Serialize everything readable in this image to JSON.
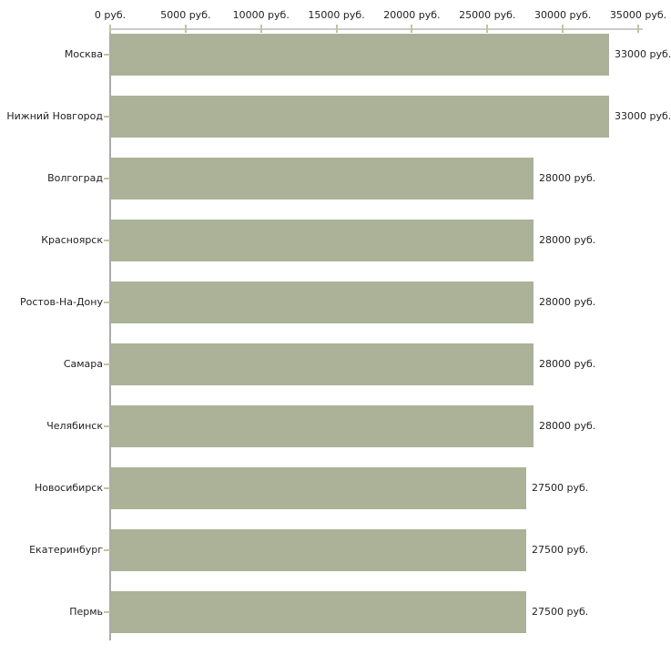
{
  "chart_data": {
    "type": "bar",
    "orientation": "horizontal",
    "title": "",
    "xlabel": "",
    "ylabel": "",
    "xlim": [
      0,
      35000
    ],
    "grid": false,
    "legend": false,
    "bar_color": "#abb298",
    "axis_line_color": "#cbcbcb",
    "left_axis_color": "#ababab",
    "tick_color": "#c6c39c",
    "text_color": "#222222",
    "background_color": "#ffffff",
    "x_ticks": [
      0,
      5000,
      10000,
      15000,
      20000,
      25000,
      30000,
      35000
    ],
    "x_tick_labels": [
      "0 руб.",
      "5000 руб.",
      "10000 руб.",
      "15000 руб.",
      "20000 руб.",
      "25000 руб.",
      "30000 руб.",
      "35000 руб."
    ],
    "categories": [
      "Москва",
      "Нижний Новгород",
      "Волгоград",
      "Красноярск",
      "Ростов-На-Дону",
      "Самара",
      "Челябинск",
      "Новосибирск",
      "Екатеринбург",
      "Пермь"
    ],
    "values": [
      33000,
      33000,
      28000,
      28000,
      28000,
      28000,
      28000,
      27500,
      27500,
      27500
    ],
    "value_labels": [
      "33000 руб.",
      "33000 руб.",
      "28000 руб.",
      "28000 руб.",
      "28000 руб.",
      "28000 руб.",
      "28000 руб.",
      "27500 руб.",
      "27500 руб.",
      "27500 руб."
    ]
  }
}
